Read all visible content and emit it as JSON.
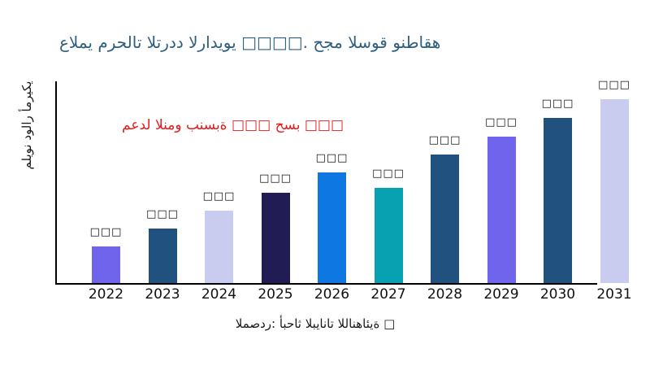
{
  "title": {
    "text": "عالمي مرحلات التردد الراديوي □□□□. حجم السوق ونطاقه",
    "color": "#2E5E80"
  },
  "annotation": {
    "text": "معدل النمو بنسبة □□□ حسب □□□",
    "color": "#E51A1A"
  },
  "source": {
    "text": "المصدر: أبحاث البيانات اللانهائية □"
  },
  "chart_data": {
    "type": "bar",
    "title": "عالمي مرحلات التردد الراديوي □□□□. حجم السوق ونطاقه",
    "xlabel": "",
    "ylabel": "مليون دولار أمريكي",
    "categories": [
      "2022",
      "2023",
      "2024",
      "2025",
      "2026",
      "2027",
      "2028",
      "2029",
      "2030",
      "2031"
    ],
    "values": [
      45,
      67,
      89,
      111,
      136,
      117,
      158,
      180,
      203,
      226
    ],
    "value_labels": [
      "□□□",
      "□□□",
      "□□□",
      "□□□",
      "□□□",
      "□□□",
      "□□□",
      "□□□",
      "□□□",
      "□□□"
    ],
    "bar_colors": [
      "#7064EC",
      "#20517F",
      "#C9CCEF",
      "#221C55",
      "#0F77E2",
      "#08A1B2",
      "#20517F",
      "#7064EC",
      "#20517F",
      "#C9CCEF"
    ],
    "ylim": [
      0,
      250
    ],
    "grid": false,
    "legend": "none",
    "note": "values are relative units; numeric labels unreadable (missing-glyph boxes)"
  }
}
